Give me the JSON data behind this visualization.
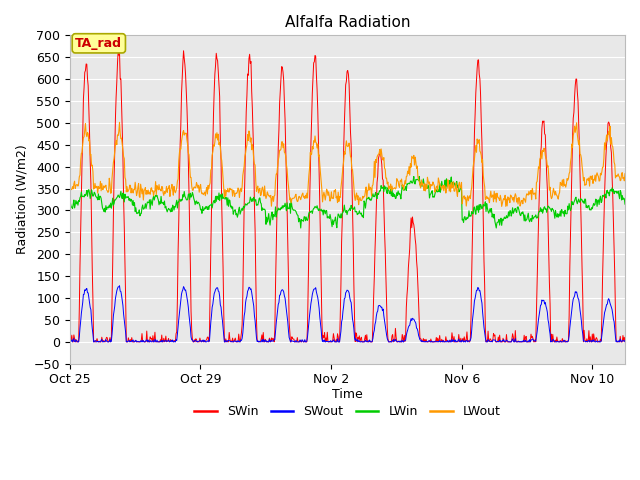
{
  "title": "Alfalfa Radiation",
  "xlabel": "Time",
  "ylabel": "Radiation (W/m2)",
  "ylim": [
    -50,
    700
  ],
  "yticks": [
    -50,
    0,
    50,
    100,
    150,
    200,
    250,
    300,
    350,
    400,
    450,
    500,
    550,
    600,
    650,
    700
  ],
  "xtick_labels": [
    "Oct 25",
    "Oct 29",
    "Nov 2",
    "Nov 6",
    "Nov 10"
  ],
  "legend_entries": [
    "SWin",
    "SWout",
    "LWin",
    "LWout"
  ],
  "colors": {
    "SWin": "#ff0000",
    "SWout": "#0000ff",
    "LWin": "#00cc00",
    "LWout": "#ff9900"
  },
  "annotation_text": "TA_rad",
  "annotation_color": "#cc0000",
  "annotation_bg": "#ffff99",
  "annotation_border": "#aaa800",
  "figure_bg": "#ffffff",
  "plot_bg": "#e8e8e8",
  "grid_color": "#ffffff",
  "title_fontsize": 11,
  "axis_fontsize": 9,
  "legend_fontsize": 9,
  "n_days": 17,
  "n_points_per_day": 48,
  "xtick_pos": [
    0,
    4,
    8,
    12,
    16
  ]
}
